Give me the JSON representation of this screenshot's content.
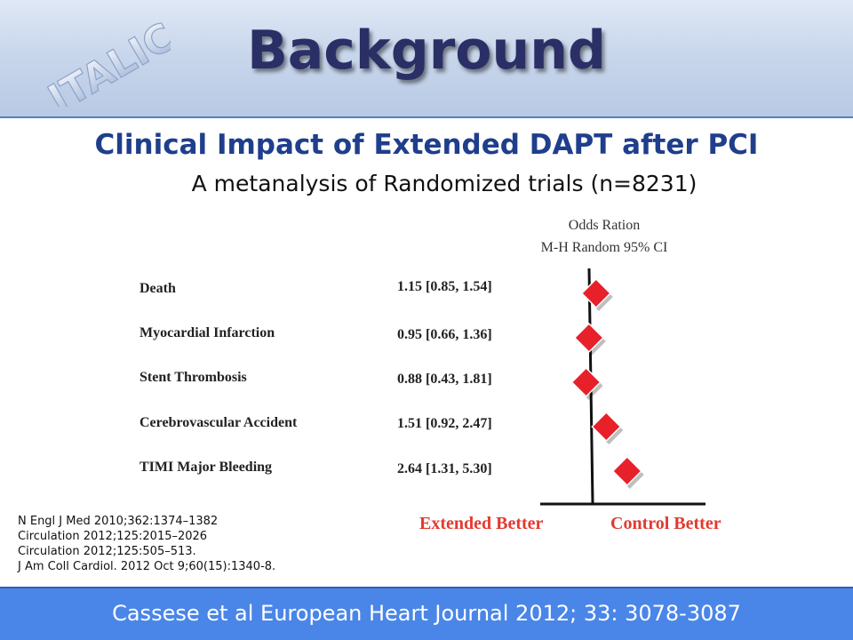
{
  "header": {
    "title": "Background",
    "logo_text": "ITALIC"
  },
  "subtitle": "Clinical Impact of Extended DAPT after PCI",
  "subtitle2": "A metanalysis of Randomized trials (n=8231)",
  "odds_header": {
    "line1": "Odds Ration",
    "line2": "M-H Random 95% CI"
  },
  "chart_data": {
    "type": "forest",
    "title": "",
    "xlabel": "",
    "ylabel": "",
    "reference_value": 1,
    "rows": [
      {
        "label": "Death",
        "ci_text": "1.15 [0.85, 1.54]",
        "or": 1.15,
        "lower": 0.85,
        "upper": 1.54
      },
      {
        "label": "Myocardial Infarction",
        "ci_text": "0.95 [0.66, 1.36]",
        "or": 0.95,
        "lower": 0.66,
        "upper": 1.36
      },
      {
        "label": "Stent Thrombosis",
        "ci_text": "0.88 [0.43, 1.81]",
        "or": 0.88,
        "lower": 0.43,
        "upper": 1.81
      },
      {
        "label": "Cerebrovascular Accident",
        "ci_text": "1.51 [0.92, 2.47]",
        "or": 1.51,
        "lower": 0.92,
        "upper": 2.47
      },
      {
        "label": "TIMI Major Bleeding",
        "ci_text": "2.64 [1.31, 5.30]",
        "or": 2.64,
        "lower": 1.31,
        "upper": 5.3
      }
    ],
    "left_direction": "Extended Better",
    "right_direction": "Control Better",
    "marker_color": "#e8202a"
  },
  "references": [
    "N Engl J Med 2010;362:1374–1382",
    "Circulation 2012;125:2015–2026",
    "Circulation 2012;125:505–513.",
    "J Am Coll Cardiol. 2012 Oct 9;60(15):1340-8."
  ],
  "footer": "Cassese et al European Heart Journal 2012; 33: 3078-3087"
}
